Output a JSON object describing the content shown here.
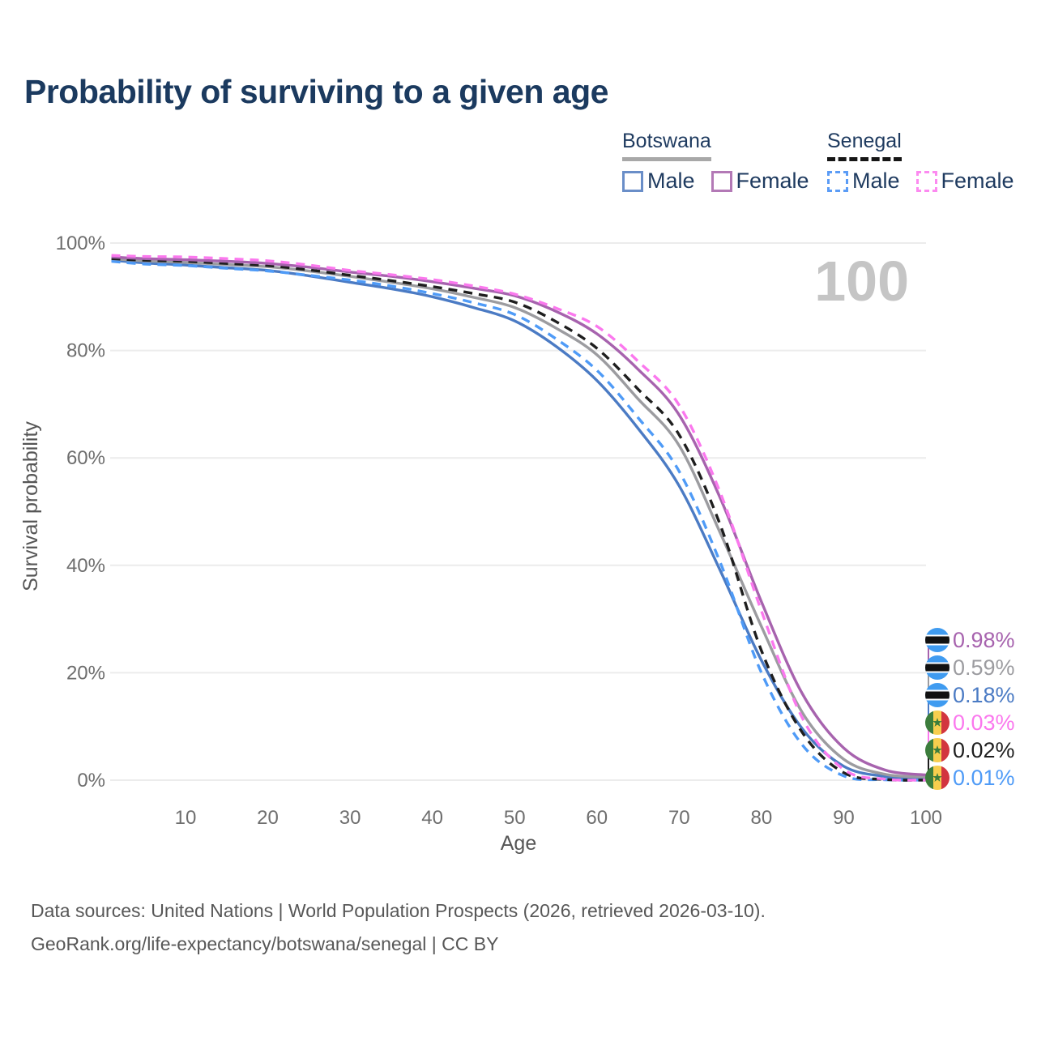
{
  "header": {
    "title": "Probability of surviving to a given age"
  },
  "legend": {
    "groups": [
      {
        "id": "botswana",
        "title": "Botswana",
        "line_style": "solid",
        "line_color": "#a8a8a8",
        "items": [
          {
            "label": "Male",
            "box_color": "#6a8ec8",
            "box_style": "solid"
          },
          {
            "label": "Female",
            "box_color": "#b379b6",
            "box_style": "solid"
          }
        ]
      },
      {
        "id": "senegal",
        "title": "Senegal",
        "line_style": "dashed",
        "line_color": "#161616",
        "items": [
          {
            "label": "Male",
            "box_color": "#5b9cf6",
            "box_style": "dashed"
          },
          {
            "label": "Female",
            "box_color": "#fc8af0",
            "box_style": "dashed"
          }
        ]
      }
    ]
  },
  "watermark": "100",
  "chart_data": {
    "type": "line",
    "title": "Probability of surviving to a given age",
    "xlabel": "Age",
    "ylabel": "Survival probability",
    "xlim": [
      1,
      100
    ],
    "ylim": [
      0,
      100
    ],
    "grid": "horizontal",
    "x_ticks": [
      10,
      20,
      30,
      40,
      50,
      60,
      70,
      80,
      90,
      100
    ],
    "y_ticks": [
      {
        "value": 0,
        "label": "0%"
      },
      {
        "value": 20,
        "label": "20%"
      },
      {
        "value": 40,
        "label": "40%"
      },
      {
        "value": 60,
        "label": "60%"
      },
      {
        "value": 80,
        "label": "80%"
      },
      {
        "value": 100,
        "label": "100%"
      }
    ],
    "ages": [
      1,
      5,
      10,
      15,
      20,
      25,
      30,
      35,
      40,
      45,
      50,
      55,
      60,
      65,
      70,
      75,
      80,
      85,
      90,
      95,
      100
    ],
    "series": [
      {
        "id": "botswana-male",
        "name": "Botswana Male",
        "country": "botswana",
        "sex": "male",
        "color": "#4b7bc4",
        "dash": "none",
        "values": [
          96.8,
          96.3,
          95.9,
          95.4,
          94.9,
          93.9,
          92.7,
          91.5,
          90.0,
          88.0,
          85.5,
          80.8,
          74.4,
          65.5,
          54.8,
          39.0,
          22.3,
          9.5,
          2.6,
          0.7,
          0.18
        ]
      },
      {
        "id": "senegal-male",
        "name": "Senegal Male",
        "country": "senegal",
        "sex": "male",
        "color": "#4f9bf7",
        "dash": "dashed",
        "values": [
          96.6,
          96.1,
          95.8,
          95.3,
          94.8,
          94.0,
          93.1,
          92.0,
          90.6,
          88.9,
          86.7,
          82.2,
          76.3,
          67.5,
          57.5,
          40.5,
          20.0,
          6.5,
          0.8,
          0.08,
          0.01
        ]
      },
      {
        "id": "botswana-total",
        "name": "Botswana",
        "country": "botswana",
        "sex": "both",
        "color": "#9c9ca0",
        "dash": "none",
        "values": [
          97.1,
          96.7,
          96.4,
          96.0,
          95.6,
          94.8,
          93.8,
          92.7,
          91.5,
          89.9,
          88.0,
          84.2,
          79.2,
          71.0,
          62.3,
          46.0,
          28.6,
          12.5,
          3.9,
          1.1,
          0.59
        ]
      },
      {
        "id": "senegal-total",
        "name": "Senegal",
        "country": "senegal",
        "sex": "both",
        "color": "#1e1e1e",
        "dash": "dashed",
        "values": [
          97.1,
          96.8,
          96.6,
          96.2,
          95.8,
          95.0,
          94.0,
          93.0,
          91.9,
          90.6,
          89.0,
          85.4,
          80.4,
          72.8,
          64.3,
          47.5,
          24.1,
          8.8,
          1.4,
          0.13,
          0.02
        ]
      },
      {
        "id": "botswana-female",
        "name": "Botswana Female",
        "country": "botswana",
        "sex": "female",
        "color": "#a763ae",
        "dash": "none",
        "values": [
          97.4,
          97.1,
          96.9,
          96.6,
          96.2,
          95.5,
          94.6,
          93.8,
          92.8,
          91.6,
          90.2,
          87.3,
          83.1,
          76.5,
          68.0,
          52.5,
          33.2,
          16.0,
          6.0,
          1.9,
          0.98
        ]
      },
      {
        "id": "senegal-female",
        "name": "Senegal Female",
        "country": "senegal",
        "sex": "female",
        "color": "#fb78ee",
        "dash": "dashed",
        "values": [
          97.7,
          97.5,
          97.4,
          97.1,
          96.7,
          95.9,
          94.9,
          94.1,
          93.2,
          92.0,
          90.5,
          87.9,
          84.5,
          78.0,
          69.8,
          53.5,
          31.5,
          11.5,
          2.0,
          0.2,
          0.03
        ]
      }
    ],
    "end_labels": [
      {
        "series": "botswana-female",
        "flag": "botswana",
        "text": "0.98%",
        "color": "#a763ae"
      },
      {
        "series": "botswana-total",
        "flag": "botswana",
        "text": "0.59%",
        "color": "#9c9ca0"
      },
      {
        "series": "botswana-male",
        "flag": "botswana",
        "text": "0.18%",
        "color": "#4b7bc4"
      },
      {
        "series": "senegal-female",
        "flag": "senegal",
        "text": "0.03%",
        "color": "#fb78ee"
      },
      {
        "series": "senegal-total",
        "flag": "senegal",
        "text": "0.02%",
        "color": "#1e1e1e"
      },
      {
        "series": "senegal-male",
        "flag": "senegal",
        "text": "0.01%",
        "color": "#4f9bf7"
      }
    ],
    "legend_position": "top-right"
  },
  "footer": {
    "line1": "Data sources: United Nations | World Population Prospects (2026, retrieved 2026-03-10).",
    "line2": "GeoRank.org/life-expectancy/botswana/senegal | CC BY"
  }
}
